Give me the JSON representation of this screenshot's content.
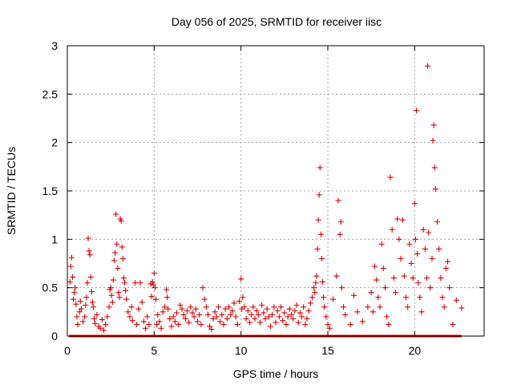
{
  "chart_data": {
    "type": "scatter",
    "title": "Day 056 of 2025, SRMTID for receiver iisc",
    "xlabel": "GPS time / hours",
    "ylabel": "SRMTID / TECUs",
    "xlim": [
      0,
      24
    ],
    "ylim": [
      0,
      3
    ],
    "x_ticks": [
      0,
      5,
      10,
      15,
      20
    ],
    "x_tick_labels": [
      "0",
      "5",
      "10",
      "15",
      "20"
    ],
    "y_ticks": [
      0,
      0.5,
      1,
      1.5,
      2,
      2.5,
      3
    ],
    "y_tick_labels": [
      "0",
      "0.5",
      "1",
      "1.5",
      "2",
      "2.5",
      "3"
    ],
    "grid": true,
    "marker": "+",
    "color": "#dd0000",
    "series": [
      {
        "name": "SRMTID",
        "points": [
          [
            0.15,
            0.56
          ],
          [
            0.2,
            0.72
          ],
          [
            0.25,
            0.81
          ],
          [
            0.3,
            0.61
          ],
          [
            0.35,
            0.38
          ],
          [
            0.4,
            0.45
          ],
          [
            0.45,
            0.5
          ],
          [
            0.5,
            0.33
          ],
          [
            0.55,
            0.2
          ],
          [
            0.6,
            0.12
          ],
          [
            0.7,
            0.25
          ],
          [
            0.75,
            0.36
          ],
          [
            0.8,
            0.28
          ],
          [
            0.9,
            0.15
          ],
          [
            1.0,
            0.2
          ],
          [
            1.05,
            0.32
          ],
          [
            1.1,
            0.4
          ],
          [
            1.15,
            0.55
          ],
          [
            1.2,
            1.01
          ],
          [
            1.25,
            0.88
          ],
          [
            1.3,
            0.84
          ],
          [
            1.35,
            0.61
          ],
          [
            1.4,
            0.46
          ],
          [
            1.45,
            0.35
          ],
          [
            1.5,
            0.3
          ],
          [
            1.55,
            0.18
          ],
          [
            1.6,
            0.13
          ],
          [
            1.7,
            0.22
          ],
          [
            1.8,
            0.1
          ],
          [
            1.9,
            0.08
          ],
          [
            2.0,
            0.17
          ],
          [
            2.1,
            0.06
          ],
          [
            2.2,
            0.12
          ],
          [
            2.3,
            0.2
          ],
          [
            2.4,
            0.3
          ],
          [
            2.45,
            0.48
          ],
          [
            2.5,
            0.5
          ],
          [
            2.55,
            0.42
          ],
          [
            2.6,
            0.35
          ],
          [
            2.65,
            0.58
          ],
          [
            2.7,
            0.78
          ],
          [
            2.75,
            0.86
          ],
          [
            2.8,
            1.26
          ],
          [
            2.85,
            0.95
          ],
          [
            2.9,
            0.7
          ],
          [
            2.95,
            0.45
          ],
          [
            3.0,
            0.4
          ],
          [
            3.05,
            1.21
          ],
          [
            3.1,
            1.19
          ],
          [
            3.15,
            0.92
          ],
          [
            3.2,
            0.8
          ],
          [
            3.25,
            0.6
          ],
          [
            3.3,
            0.55
          ],
          [
            3.35,
            0.47
          ],
          [
            3.4,
            0.38
          ],
          [
            3.5,
            0.25
          ],
          [
            3.6,
            0.2
          ],
          [
            3.7,
            0.3
          ],
          [
            3.75,
            0.16
          ],
          [
            3.9,
            0.55
          ],
          [
            4.0,
            0.12
          ],
          [
            4.1,
            0.28
          ],
          [
            4.2,
            0.55
          ],
          [
            4.3,
            0.35
          ],
          [
            4.4,
            0.15
          ],
          [
            4.5,
            0.08
          ],
          [
            4.6,
            0.2
          ],
          [
            4.7,
            0.12
          ],
          [
            4.8,
            0.54
          ],
          [
            4.85,
            0.41
          ],
          [
            4.9,
            0.56
          ],
          [
            4.95,
            0.53
          ],
          [
            5.0,
            0.65
          ],
          [
            5.05,
            0.5
          ],
          [
            5.1,
            0.38
          ],
          [
            5.15,
            0.12
          ],
          [
            5.2,
            0.22
          ],
          [
            5.3,
            0.15
          ],
          [
            5.4,
            0.08
          ],
          [
            5.5,
            0.25
          ],
          [
            5.6,
            0.3
          ],
          [
            5.7,
            0.48
          ],
          [
            5.75,
            0.4
          ],
          [
            5.8,
            0.28
          ],
          [
            5.9,
            0.18
          ],
          [
            6.0,
            0.1
          ],
          [
            6.1,
            0.2
          ],
          [
            6.2,
            0.15
          ],
          [
            6.3,
            0.24
          ],
          [
            6.4,
            0.12
          ],
          [
            6.5,
            0.32
          ],
          [
            6.6,
            0.28
          ],
          [
            6.7,
            0.22
          ],
          [
            6.8,
            0.18
          ],
          [
            6.9,
            0.26
          ],
          [
            7.0,
            0.14
          ],
          [
            7.1,
            0.3
          ],
          [
            7.2,
            0.24
          ],
          [
            7.3,
            0.2
          ],
          [
            7.4,
            0.28
          ],
          [
            7.5,
            0.15
          ],
          [
            7.6,
            0.22
          ],
          [
            7.7,
            0.12
          ],
          [
            7.8,
            0.5
          ],
          [
            7.9,
            0.38
          ],
          [
            8.0,
            0.3
          ],
          [
            8.1,
            0.22
          ],
          [
            8.2,
            0.1
          ],
          [
            8.3,
            0.07
          ],
          [
            8.4,
            0.18
          ],
          [
            8.5,
            0.25
          ],
          [
            8.6,
            0.2
          ],
          [
            8.7,
            0.3
          ],
          [
            8.8,
            0.15
          ],
          [
            8.9,
            0.22
          ],
          [
            9.0,
            0.12
          ],
          [
            9.1,
            0.28
          ],
          [
            9.2,
            0.18
          ],
          [
            9.3,
            0.3
          ],
          [
            9.4,
            0.22
          ],
          [
            9.5,
            0.26
          ],
          [
            9.6,
            0.34
          ],
          [
            9.7,
            0.2
          ],
          [
            9.8,
            0.12
          ],
          [
            9.9,
            0.36
          ],
          [
            10.0,
            0.59
          ],
          [
            10.05,
            0.28
          ],
          [
            10.1,
            0.4
          ],
          [
            10.2,
            0.3
          ],
          [
            10.3,
            0.18
          ],
          [
            10.4,
            0.26
          ],
          [
            10.5,
            0.14
          ],
          [
            10.6,
            0.22
          ],
          [
            10.7,
            0.3
          ],
          [
            10.8,
            0.18
          ],
          [
            10.9,
            0.26
          ],
          [
            11.0,
            0.22
          ],
          [
            11.1,
            0.14
          ],
          [
            11.2,
            0.32
          ],
          [
            11.3,
            0.24
          ],
          [
            11.4,
            0.18
          ],
          [
            11.5,
            0.28
          ],
          [
            11.6,
            0.2
          ],
          [
            11.7,
            0.1
          ],
          [
            11.8,
            0.22
          ],
          [
            11.9,
            0.3
          ],
          [
            12.0,
            0.14
          ],
          [
            12.1,
            0.26
          ],
          [
            12.2,
            0.2
          ],
          [
            12.3,
            0.3
          ],
          [
            12.4,
            0.16
          ],
          [
            12.5,
            0.24
          ],
          [
            12.6,
            0.12
          ],
          [
            12.7,
            0.2
          ],
          [
            12.8,
            0.28
          ],
          [
            12.9,
            0.22
          ],
          [
            13.0,
            0.18
          ],
          [
            13.1,
            0.26
          ],
          [
            13.2,
            0.32
          ],
          [
            13.3,
            0.14
          ],
          [
            13.4,
            0.24
          ],
          [
            13.5,
            0.2
          ],
          [
            13.6,
            0.3
          ],
          [
            13.7,
            0.12
          ],
          [
            13.8,
            0.18
          ],
          [
            13.9,
            0.26
          ],
          [
            14.0,
            0.34
          ],
          [
            14.1,
            0.4
          ],
          [
            14.2,
            0.5
          ],
          [
            14.25,
            0.45
          ],
          [
            14.3,
            0.55
          ],
          [
            14.35,
            0.62
          ],
          [
            14.4,
            0.9
          ],
          [
            14.45,
            1.2
          ],
          [
            14.5,
            1.46
          ],
          [
            14.55,
            1.74
          ],
          [
            14.6,
            1.05
          ],
          [
            14.65,
            0.8
          ],
          [
            14.7,
            0.56
          ],
          [
            14.75,
            0.4
          ],
          [
            14.8,
            0.3
          ],
          [
            14.9,
            0.2
          ],
          [
            15.0,
            0.12
          ],
          [
            15.1,
            0.08
          ],
          [
            15.3,
            0.38
          ],
          [
            15.5,
            0.62
          ],
          [
            15.6,
            1.4
          ],
          [
            15.7,
            1.05
          ],
          [
            15.75,
            1.18
          ],
          [
            15.8,
            0.5
          ],
          [
            15.9,
            0.3
          ],
          [
            16.0,
            0.22
          ],
          [
            16.3,
            0.12
          ],
          [
            16.5,
            0.42
          ],
          [
            16.7,
            0.25
          ],
          [
            17.0,
            0.15
          ],
          [
            17.3,
            0.3
          ],
          [
            17.5,
            0.45
          ],
          [
            17.6,
            0.25
          ],
          [
            17.7,
            0.72
          ],
          [
            17.8,
            0.58
          ],
          [
            17.9,
            0.4
          ],
          [
            18.0,
            0.3
          ],
          [
            18.1,
            0.95
          ],
          [
            18.2,
            0.7
          ],
          [
            18.3,
            0.5
          ],
          [
            18.4,
            0.2
          ],
          [
            18.5,
            0.12
          ],
          [
            18.6,
            1.64
          ],
          [
            18.7,
            1.1
          ],
          [
            18.8,
            0.6
          ],
          [
            18.9,
            0.45
          ],
          [
            19.0,
            1.21
          ],
          [
            19.1,
            1.0
          ],
          [
            19.2,
            0.8
          ],
          [
            19.3,
            1.2
          ],
          [
            19.4,
            0.62
          ],
          [
            19.5,
            0.4
          ],
          [
            19.6,
            0.3
          ],
          [
            19.7,
            0.95
          ],
          [
            19.8,
            0.75
          ],
          [
            19.9,
            0.6
          ],
          [
            20.0,
            1.37
          ],
          [
            20.05,
            1.0
          ],
          [
            20.1,
            2.33
          ],
          [
            20.15,
            0.85
          ],
          [
            20.2,
            0.55
          ],
          [
            20.3,
            0.4
          ],
          [
            20.4,
            0.25
          ],
          [
            20.5,
            1.1
          ],
          [
            20.6,
            0.9
          ],
          [
            20.7,
            0.6
          ],
          [
            20.75,
            2.79
          ],
          [
            20.8,
            1.07
          ],
          [
            20.9,
            0.5
          ],
          [
            21.0,
            0.8
          ],
          [
            21.05,
            2.02
          ],
          [
            21.1,
            2.18
          ],
          [
            21.15,
            1.74
          ],
          [
            21.2,
            1.52
          ],
          [
            21.3,
            1.18
          ],
          [
            21.4,
            0.9
          ],
          [
            21.5,
            0.6
          ],
          [
            21.6,
            0.4
          ],
          [
            21.7,
            0.3
          ],
          [
            21.8,
            0.7
          ],
          [
            21.9,
            0.77
          ],
          [
            22.0,
            0.5
          ],
          [
            22.2,
            0.12
          ],
          [
            22.4,
            0.37
          ],
          [
            22.7,
            0.29
          ]
        ]
      }
    ],
    "zero_band": {
      "x_start": 0.1,
      "x_end": 22.7,
      "y": 0
    }
  }
}
